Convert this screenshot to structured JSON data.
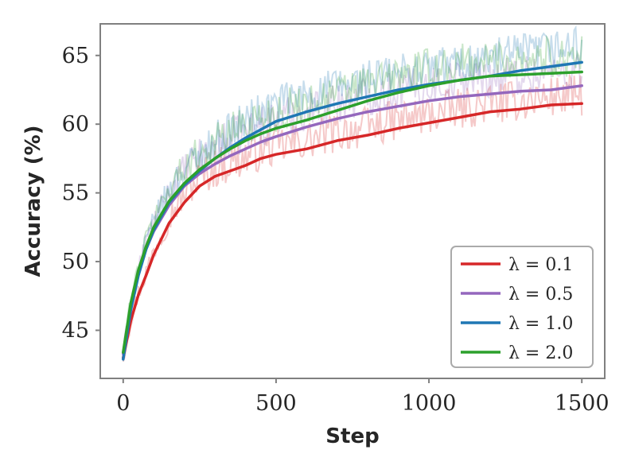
{
  "chart_data": {
    "type": "line",
    "title": "",
    "xlabel": "Step",
    "ylabel": "Accuracy (%)",
    "xlim": [
      -75,
      1575
    ],
    "ylim": [
      41.5,
      67.3
    ],
    "xticks": [
      0,
      500,
      1000,
      1500
    ],
    "xtick_labels": [
      "0",
      "500",
      "1000",
      "1500"
    ],
    "yticks": [
      45,
      50,
      55,
      60,
      65
    ],
    "ytick_labels": [
      "45",
      "50",
      "55",
      "60",
      "65"
    ],
    "grid": false,
    "legend_position": "bottom-right",
    "raw_series_shown": true,
    "x": [
      0,
      25,
      50,
      75,
      100,
      150,
      200,
      250,
      300,
      350,
      400,
      450,
      500,
      600,
      700,
      800,
      900,
      1000,
      1100,
      1200,
      1300,
      1400,
      1500
    ],
    "series": [
      {
        "name": "λ = 0.1",
        "color": "#d62728",
        "values": [
          43.0,
          45.7,
          47.6,
          49.0,
          50.5,
          52.8,
          54.3,
          55.5,
          56.2,
          56.6,
          57.0,
          57.5,
          57.8,
          58.2,
          58.8,
          59.2,
          59.7,
          60.1,
          60.5,
          60.9,
          61.1,
          61.4,
          61.5
        ]
      },
      {
        "name": "λ = 0.5",
        "color": "#9467bd",
        "values": [
          43.3,
          46.8,
          49.2,
          50.9,
          52.2,
          54.1,
          55.5,
          56.4,
          57.1,
          57.7,
          58.2,
          58.7,
          59.1,
          59.8,
          60.4,
          60.9,
          61.3,
          61.7,
          62.0,
          62.2,
          62.4,
          62.5,
          62.8
        ]
      },
      {
        "name": "λ = 1.0",
        "color": "#1f77b4",
        "values": [
          42.9,
          46.5,
          49.0,
          50.9,
          52.3,
          54.3,
          55.6,
          56.6,
          57.5,
          58.3,
          59.0,
          59.6,
          60.2,
          60.9,
          61.5,
          62.0,
          62.5,
          62.9,
          63.2,
          63.5,
          63.9,
          64.2,
          64.5
        ]
      },
      {
        "name": "λ = 2.0",
        "color": "#2ca02c",
        "values": [
          43.4,
          47.0,
          49.4,
          51.1,
          52.5,
          54.4,
          55.7,
          56.7,
          57.5,
          58.2,
          58.8,
          59.3,
          59.7,
          60.3,
          61.0,
          61.7,
          62.3,
          62.8,
          63.2,
          63.5,
          63.6,
          63.7,
          63.8
        ]
      }
    ]
  }
}
